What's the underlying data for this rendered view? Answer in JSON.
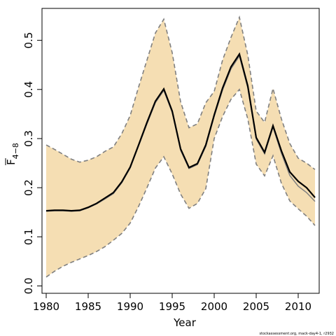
{
  "chart_data": {
    "type": "line",
    "title": "",
    "xlabel": "Year",
    "ylabel": "F",
    "ylabel_subscript": "4−8",
    "xlim": [
      1979.5,
      2012.5
    ],
    "ylim": [
      -0.015,
      0.565
    ],
    "xticks": [
      1980,
      1985,
      1990,
      1995,
      2000,
      2005,
      2010
    ],
    "yticks": [
      0.0,
      0.1,
      0.2,
      0.3,
      0.4,
      0.5
    ],
    "ytick_labels": [
      "0.0",
      "0.1",
      "0.2",
      "0.3",
      "0.4",
      "0.5"
    ],
    "grid": false,
    "legend": "none",
    "x": [
      1980,
      1981,
      1982,
      1983,
      1984,
      1985,
      1986,
      1987,
      1988,
      1989,
      1990,
      1991,
      1992,
      1993,
      1994,
      1995,
      1996,
      1997,
      1998,
      1999,
      2000,
      2001,
      2002,
      2003,
      2004,
      2005,
      2006,
      2007,
      2008,
      2009,
      2010,
      2011,
      2012
    ],
    "series": [
      {
        "role": "estimate",
        "values": [
          0.153,
          0.154,
          0.154,
          0.153,
          0.154,
          0.16,
          0.168,
          0.179,
          0.19,
          0.212,
          0.242,
          0.287,
          0.333,
          0.376,
          0.401,
          0.356,
          0.279,
          0.241,
          0.249,
          0.287,
          0.348,
          0.403,
          0.446,
          0.472,
          0.407,
          0.302,
          0.272,
          0.326,
          0.275,
          0.232,
          0.213,
          0.2,
          0.18
        ]
      },
      {
        "role": "second-estimate",
        "values": [
          0.152,
          0.153,
          0.153,
          0.152,
          0.153,
          0.159,
          0.167,
          0.177,
          0.188,
          0.21,
          0.24,
          0.285,
          0.33,
          0.373,
          0.398,
          0.353,
          0.276,
          0.239,
          0.247,
          0.284,
          0.345,
          0.399,
          0.442,
          0.468,
          0.403,
          0.299,
          0.269,
          0.323,
          0.27,
          0.225,
          0.203,
          0.19,
          0.172
        ]
      },
      {
        "role": "upper",
        "values": [
          0.287,
          0.278,
          0.268,
          0.258,
          0.252,
          0.256,
          0.263,
          0.274,
          0.283,
          0.31,
          0.347,
          0.405,
          0.46,
          0.515,
          0.543,
          0.475,
          0.375,
          0.322,
          0.33,
          0.373,
          0.396,
          0.46,
          0.506,
          0.547,
          0.47,
          0.356,
          0.333,
          0.402,
          0.34,
          0.29,
          0.26,
          0.25,
          0.237
        ]
      },
      {
        "role": "lower",
        "values": [
          0.018,
          0.03,
          0.04,
          0.048,
          0.055,
          0.062,
          0.07,
          0.08,
          0.093,
          0.107,
          0.128,
          0.162,
          0.2,
          0.24,
          0.263,
          0.228,
          0.187,
          0.158,
          0.168,
          0.198,
          0.3,
          0.345,
          0.38,
          0.4,
          0.34,
          0.248,
          0.224,
          0.265,
          0.209,
          0.173,
          0.157,
          0.142,
          0.123
        ]
      }
    ],
    "colors": {
      "band": "#f5deb3",
      "bounds": "#808080",
      "estimate": "#000000",
      "second_estimate": "#808080",
      "axis": "#000000"
    }
  },
  "credit": "stockassessment.org, mack-day4-1, r2932"
}
